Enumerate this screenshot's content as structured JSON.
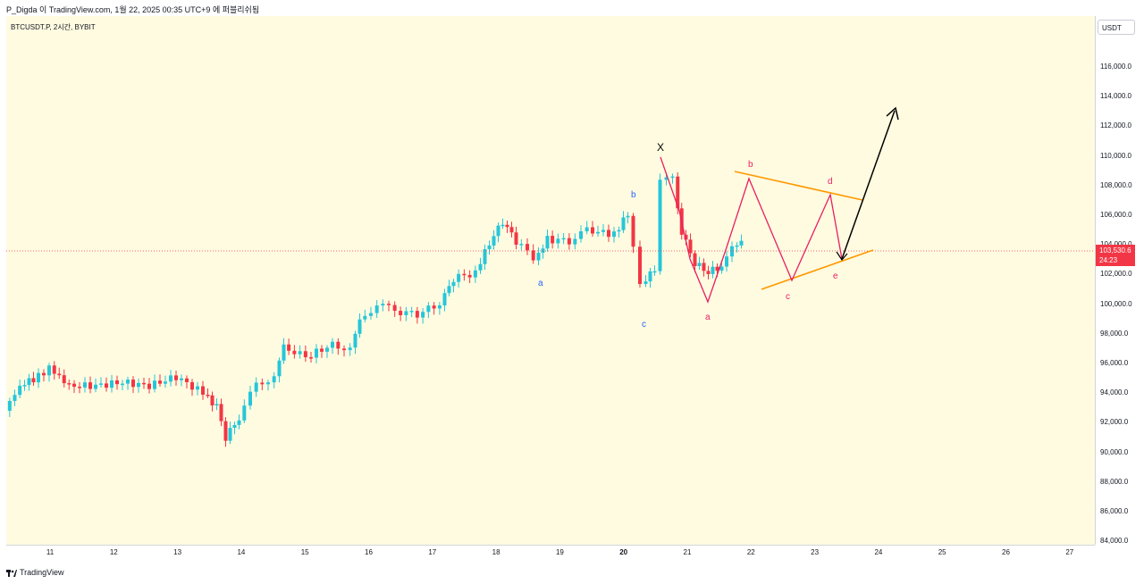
{
  "header": {
    "text": "P_Digda 이 TradingView.com, 1월 22, 2025 00:35 UTC+9 에 퍼블리쉬됨"
  },
  "symbol": {
    "label": "BTCUSDT.P, 2시간, BYBIT"
  },
  "price_scale": {
    "currency": "USDT",
    "ticks": [
      "116,000.0",
      "114,000.0",
      "112,000.0",
      "110,000.0",
      "108,000.0",
      "106,000.0",
      "104,000.0",
      "102,000.0",
      "100,000.0",
      "98,000.0",
      "96,000.0",
      "94,000.0",
      "92,000.0",
      "90,000.0",
      "88,000.0",
      "86,000.0",
      "84,000.0"
    ],
    "last_price": "103,530.6",
    "countdown": "24:23"
  },
  "time_axis": {
    "ticks": [
      "11",
      "12",
      "13",
      "14",
      "15",
      "16",
      "17",
      "18",
      "19",
      "20",
      "21",
      "22",
      "23",
      "24",
      "25",
      "26",
      "27"
    ]
  },
  "annotations": {
    "wave1": [
      "a",
      "b",
      "c"
    ],
    "x_label": "X",
    "wave2": [
      "a",
      "b",
      "c",
      "d",
      "e"
    ]
  },
  "colors": {
    "up": "#26c6da",
    "down": "#f23645",
    "triangle": "#ff9800",
    "wave_line": "#e91e63",
    "background": "#fffbe0"
  },
  "footer": {
    "brand": "TradingView"
  }
}
